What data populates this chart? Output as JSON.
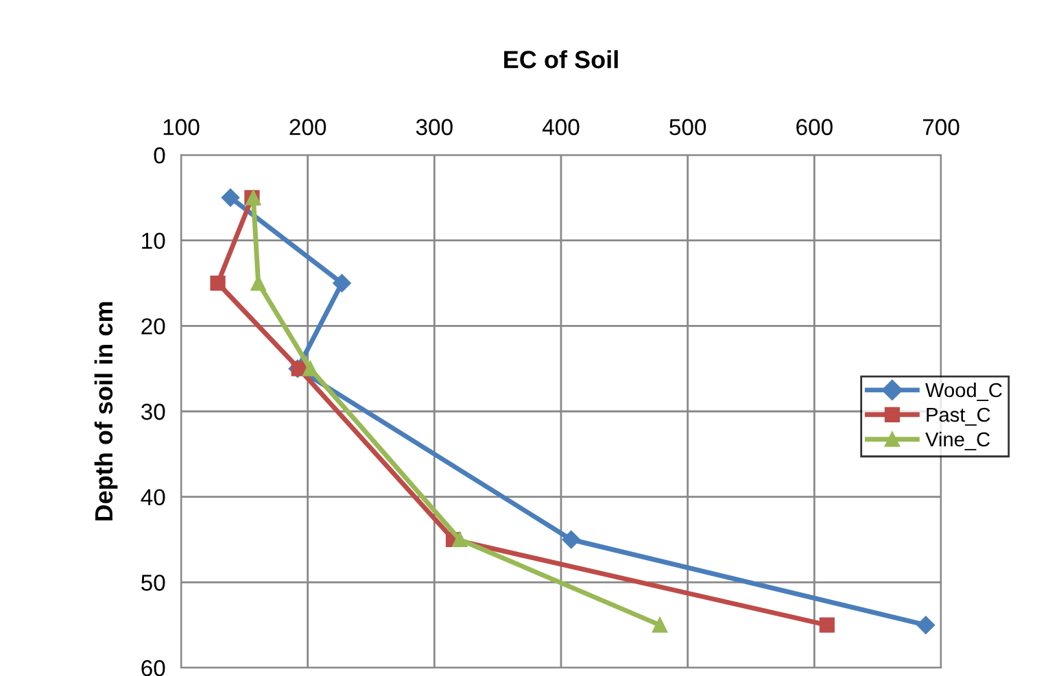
{
  "chart_data": {
    "type": "line",
    "title": "EC of Soil",
    "ylabel": "Depth of soil in cm",
    "xlim": [
      100,
      700
    ],
    "xticks": [
      100,
      200,
      300,
      400,
      500,
      600,
      700
    ],
    "ylim": [
      60,
      0
    ],
    "yticks": [
      0,
      10,
      20,
      30,
      40,
      50,
      60
    ],
    "grid": true,
    "legend": "right",
    "line_style": "solid",
    "series": [
      {
        "name": "Wood_C",
        "color": "#4a7ebb",
        "marker": "diamond",
        "x": [
          139,
          227,
          192,
          408,
          688
        ],
        "values": [
          5,
          15,
          25,
          45,
          55
        ]
      },
      {
        "name": "Past_C",
        "color": "#be4b48",
        "marker": "square",
        "x": [
          156,
          129,
          193,
          315,
          610
        ],
        "values": [
          5,
          15,
          25,
          45,
          55
        ]
      },
      {
        "name": "Vine_C",
        "color": "#98b954",
        "marker": "triangle",
        "x": [
          157,
          161,
          202,
          320,
          478
        ],
        "values": [
          5,
          15,
          25,
          45,
          55
        ]
      }
    ]
  }
}
